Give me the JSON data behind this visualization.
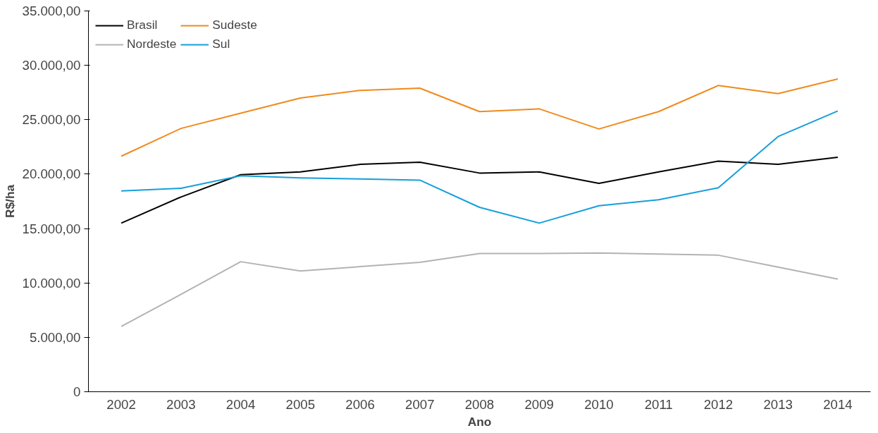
{
  "chart_data": {
    "type": "line",
    "xlabel": "Ano",
    "ylabel": "R$/ha",
    "categories": [
      "2002",
      "2003",
      "2004",
      "2005",
      "2006",
      "2007",
      "2008",
      "2009",
      "2010",
      "2011",
      "2012",
      "2013",
      "2014"
    ],
    "series": [
      {
        "name": "Brasil",
        "color": "#000000",
        "values": [
          15500,
          17900,
          19950,
          20200,
          20900,
          21100,
          20100,
          20200,
          19150,
          20200,
          21200,
          20900,
          21550
        ]
      },
      {
        "name": "Nordeste",
        "color": "#b3b3b3",
        "values": [
          6000,
          8950,
          11950,
          11100,
          11500,
          11900,
          12700,
          12700,
          12750,
          12650,
          12550,
          11450,
          10350
        ]
      },
      {
        "name": "Sudeste",
        "color": "#f08a1c",
        "values": [
          21650,
          24200,
          25600,
          27000,
          27700,
          27900,
          25750,
          26000,
          24150,
          25750,
          28150,
          27400,
          28750
        ]
      },
      {
        "name": "Sul",
        "color": "#159fdb",
        "values": [
          18450,
          18700,
          19850,
          19650,
          19550,
          19450,
          16950,
          15500,
          17100,
          17650,
          18750,
          23450,
          25800
        ]
      }
    ],
    "ylim": [
      0,
      35000
    ],
    "yticks": [
      0,
      {
        "value": 5000,
        "label": "5.000,00"
      },
      {
        "value": 10000,
        "label": "10.000,00"
      },
      {
        "value": 15000,
        "label": "15.000,00"
      },
      {
        "value": 20000,
        "label": "20.000,00"
      },
      {
        "value": 25000,
        "label": "25.000,00"
      },
      {
        "value": 30000,
        "label": "30.000,00"
      },
      {
        "value": 35000,
        "label": "35.000,00"
      }
    ],
    "grid": false,
    "legend": "top left",
    "marker": "none",
    "line_style": "solid"
  }
}
